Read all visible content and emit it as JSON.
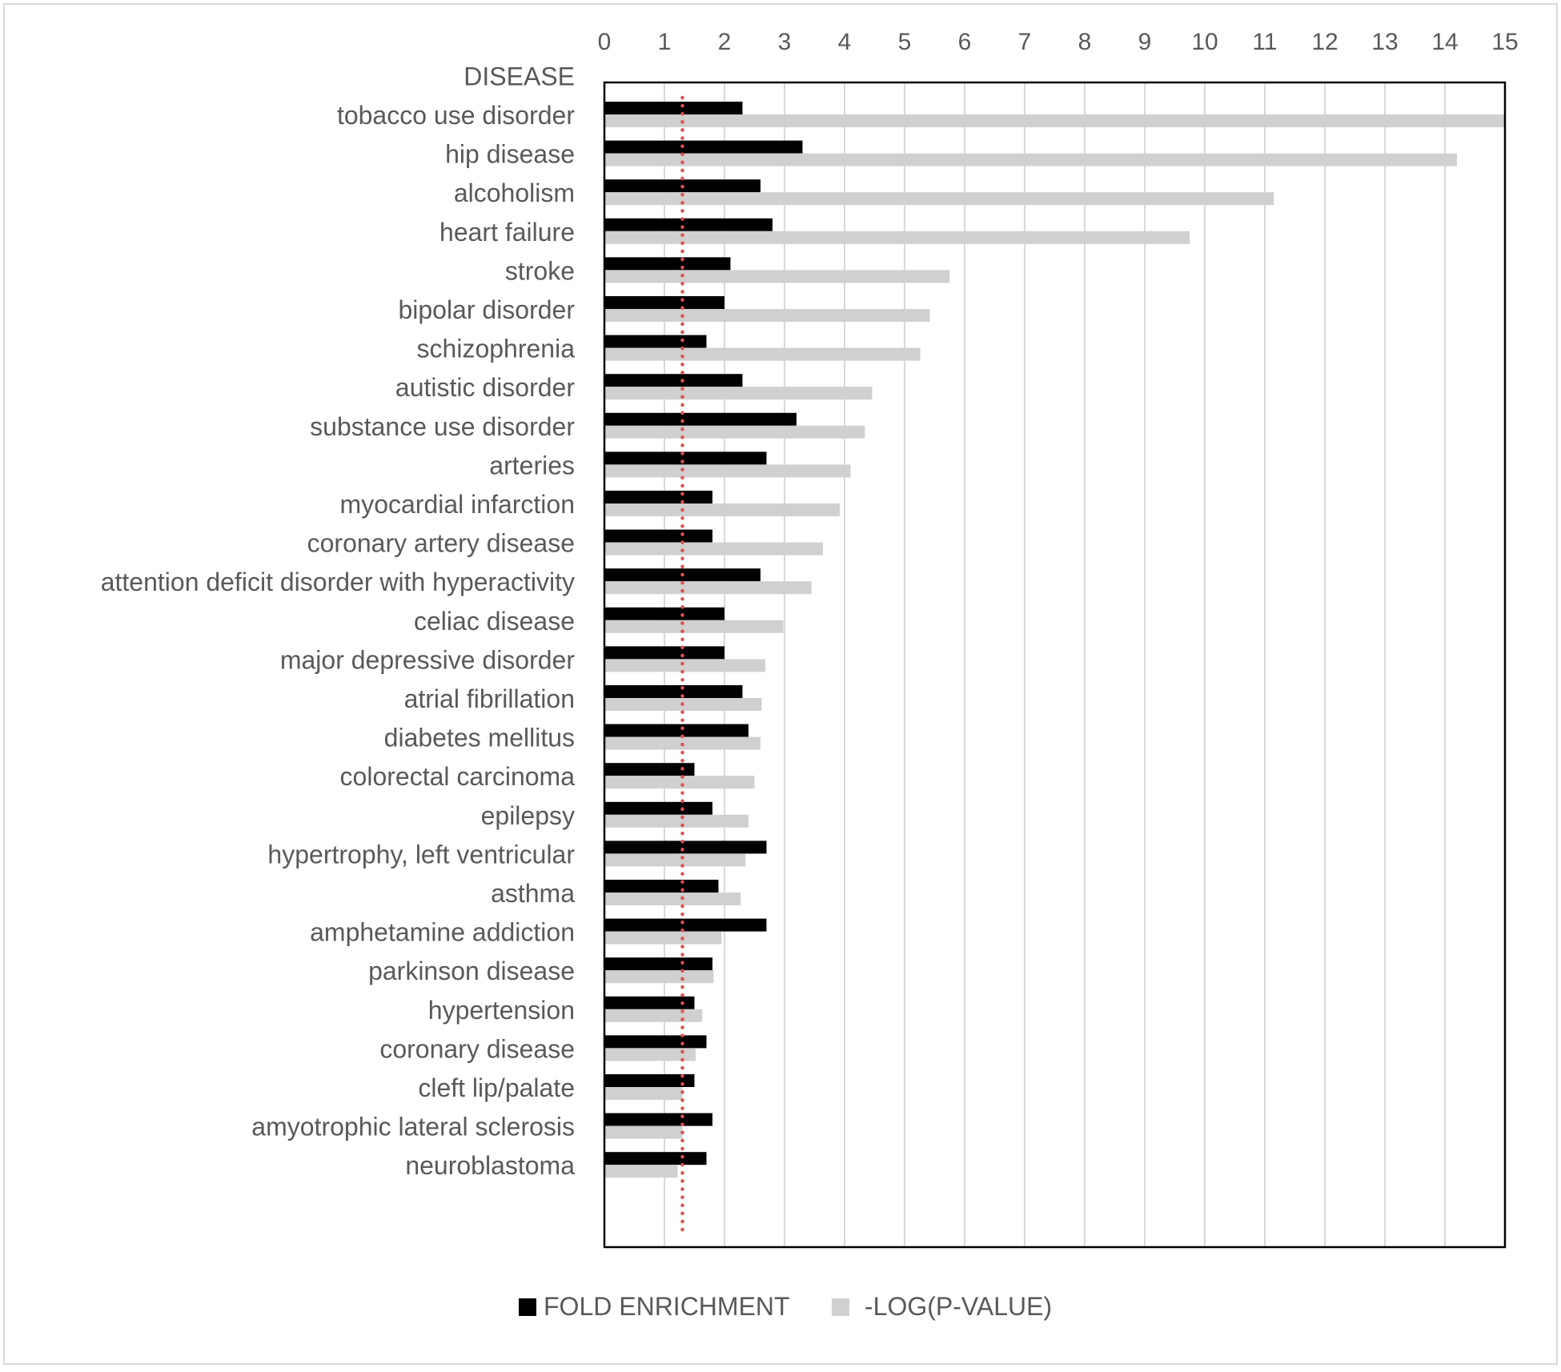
{
  "chart_data": {
    "type": "bar",
    "orientation": "horizontal",
    "category_header": "DISEASE",
    "categories": [
      "tobacco use disorder",
      "hip disease",
      "alcoholism",
      "heart failure",
      "stroke",
      "bipolar disorder",
      "schizophrenia",
      "autistic disorder",
      "substance use disorder",
      "arteries",
      "myocardial infarction",
      "coronary artery disease",
      "attention deficit disorder with hyperactivity",
      "celiac disease",
      "major depressive disorder",
      "atrial fibrillation",
      "diabetes mellitus",
      "colorectal carcinoma",
      "epilepsy",
      "hypertrophy, left ventricular",
      "asthma",
      "amphetamine addiction",
      "parkinson disease",
      "hypertension",
      "coronary disease",
      "cleft lip/palate",
      "amyotrophic lateral sclerosis",
      "neuroblastoma"
    ],
    "series": [
      {
        "name": "FOLD ENRICHMENT",
        "color": "#000000",
        "values": [
          2.3,
          3.3,
          2.6,
          2.8,
          2.1,
          2.0,
          1.7,
          2.3,
          3.2,
          2.7,
          1.8,
          1.8,
          2.6,
          2.0,
          2.0,
          2.3,
          2.4,
          1.5,
          1.8,
          2.7,
          1.9,
          2.7,
          1.8,
          1.5,
          1.7,
          1.5,
          1.8,
          1.7
        ]
      },
      {
        "name": "-LOG(P-VALUE)",
        "color": "#d0d0d0",
        "values": [
          15.0,
          14.2,
          11.15,
          9.75,
          5.75,
          5.42,
          5.26,
          4.46,
          4.34,
          4.1,
          3.92,
          3.64,
          3.45,
          2.98,
          2.68,
          2.62,
          2.6,
          2.5,
          2.4,
          2.35,
          2.27,
          1.95,
          1.82,
          1.63,
          1.52,
          1.3,
          1.3,
          1.22
        ]
      }
    ],
    "xlim": [
      0,
      15
    ],
    "x_ticks": [
      "0",
      "1",
      "2",
      "3",
      "4",
      "5",
      "6",
      "7",
      "8",
      "9",
      "10",
      "11",
      "12",
      "13",
      "14",
      "15"
    ],
    "x_axis_position": "top",
    "reference_line": {
      "value": 1.3,
      "color": "#e05050",
      "style": "dotted"
    },
    "grid": true,
    "legend_position": "bottom"
  }
}
